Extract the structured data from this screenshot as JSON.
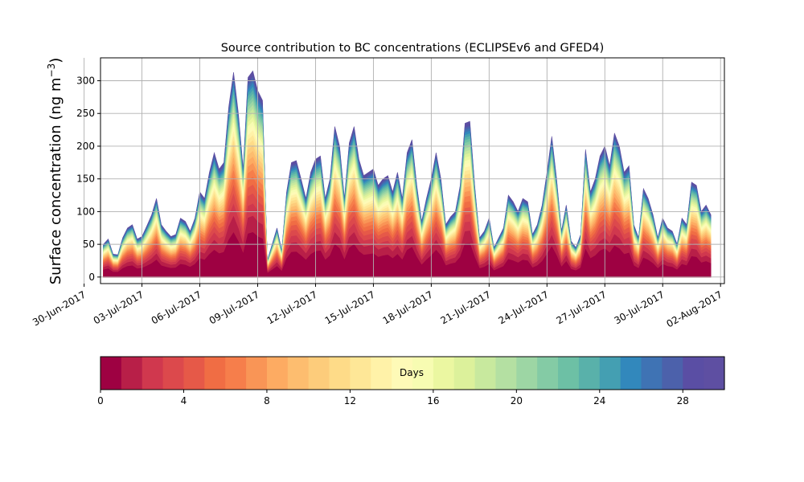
{
  "chart_data": {
    "type": "area",
    "title": "Source contribution to BC concentrations (ECLIPSEv6 and GFED4)",
    "ylabel": "Surface concentration (ng m",
    "ylabel_sup": "−3",
    "ylabel_close": ")",
    "xlabel": "",
    "ylim": [
      -10,
      335
    ],
    "yticks": [
      0,
      50,
      100,
      150,
      200,
      250,
      300
    ],
    "xticks": [
      "30-Jun-2017",
      "03-Jul-2017",
      "06-Jul-2017",
      "09-Jul-2017",
      "12-Jul-2017",
      "15-Jul-2017",
      "18-Jul-2017",
      "21-Jul-2017",
      "24-Jul-2017",
      "27-Jul-2017",
      "30-Jul-2017",
      "02-Aug-2017"
    ],
    "x_start_date": "2017-07-01",
    "x_end_date": "2017-08-02",
    "grid": true,
    "stacked_layers": 30,
    "colorbar": {
      "label": "Days",
      "min": 0,
      "max": 30,
      "ticks": [
        0,
        4,
        8,
        12,
        16,
        20,
        24,
        28
      ],
      "colors": [
        "#9e0142",
        "#b81f48",
        "#d0384e",
        "#dc494c",
        "#e65948",
        "#f06d44",
        "#f67e4b",
        "#f99556",
        "#fdab62",
        "#fdbd6f",
        "#fdcc7b",
        "#fedb88",
        "#fee797",
        "#fff2a8",
        "#fefab7",
        "#f7fcb2",
        "#ebf7a1",
        "#dcf19b",
        "#c8e99e",
        "#b4e0a2",
        "#9dd6a4",
        "#84cba5",
        "#6dc0a5",
        "#59b1aa",
        "#449fb2",
        "#3288bc",
        "#3f73b4",
        "#4c61ab",
        "#5a4ea4",
        "#5e4fa2"
      ]
    },
    "total_series": {
      "x_dates": [
        "2017-07-01T00:00",
        "2017-07-01T06:00",
        "2017-07-01T12:00",
        "2017-07-01T18:00",
        "2017-07-02T00:00",
        "2017-07-02T06:00",
        "2017-07-02T12:00",
        "2017-07-02T18:00",
        "2017-07-03T00:00",
        "2017-07-03T06:00",
        "2017-07-03T12:00",
        "2017-07-03T18:00",
        "2017-07-04T00:00",
        "2017-07-04T06:00",
        "2017-07-04T12:00",
        "2017-07-04T18:00",
        "2017-07-05T00:00",
        "2017-07-05T06:00",
        "2017-07-05T12:00",
        "2017-07-05T18:00",
        "2017-07-06T00:00",
        "2017-07-06T06:00",
        "2017-07-06T12:00",
        "2017-07-06T18:00",
        "2017-07-07T00:00",
        "2017-07-07T06:00",
        "2017-07-07T12:00",
        "2017-07-07T18:00",
        "2017-07-08T00:00",
        "2017-07-08T06:00",
        "2017-07-08T12:00",
        "2017-07-08T18:00",
        "2017-07-09T00:00",
        "2017-07-09T06:00",
        "2017-07-09T12:00",
        "2017-07-09T18:00",
        "2017-07-10T00:00",
        "2017-07-10T06:00",
        "2017-07-10T12:00",
        "2017-07-10T18:00",
        "2017-07-11T00:00",
        "2017-07-11T06:00",
        "2017-07-11T12:00",
        "2017-07-11T18:00",
        "2017-07-12T00:00",
        "2017-07-12T06:00",
        "2017-07-12T12:00",
        "2017-07-12T18:00",
        "2017-07-13T00:00",
        "2017-07-13T06:00",
        "2017-07-13T12:00",
        "2017-07-13T18:00",
        "2017-07-14T00:00",
        "2017-07-14T06:00",
        "2017-07-14T12:00",
        "2017-07-14T18:00",
        "2017-07-15T00:00",
        "2017-07-15T06:00",
        "2017-07-15T12:00",
        "2017-07-15T18:00",
        "2017-07-16T00:00",
        "2017-07-16T06:00",
        "2017-07-16T12:00",
        "2017-07-16T18:00",
        "2017-07-17T00:00",
        "2017-07-17T06:00",
        "2017-07-17T12:00",
        "2017-07-17T18:00",
        "2017-07-18T00:00",
        "2017-07-18T06:00",
        "2017-07-18T12:00",
        "2017-07-18T18:00",
        "2017-07-19T00:00",
        "2017-07-19T06:00",
        "2017-07-19T12:00",
        "2017-07-19T18:00",
        "2017-07-20T00:00",
        "2017-07-20T06:00",
        "2017-07-20T12:00",
        "2017-07-20T18:00",
        "2017-07-21T00:00",
        "2017-07-21T06:00",
        "2017-07-21T12:00",
        "2017-07-21T18:00",
        "2017-07-22T00:00",
        "2017-07-22T06:00",
        "2017-07-22T12:00",
        "2017-07-22T18:00",
        "2017-07-23T00:00",
        "2017-07-23T06:00",
        "2017-07-23T12:00",
        "2017-07-23T18:00",
        "2017-07-24T00:00",
        "2017-07-24T06:00",
        "2017-07-24T12:00",
        "2017-07-24T18:00",
        "2017-07-25T00:00",
        "2017-07-25T06:00",
        "2017-07-25T12:00",
        "2017-07-25T18:00",
        "2017-07-26T00:00",
        "2017-07-26T06:00",
        "2017-07-26T12:00",
        "2017-07-26T18:00",
        "2017-07-27T00:00",
        "2017-07-27T06:00",
        "2017-07-27T12:00",
        "2017-07-27T18:00",
        "2017-07-28T00:00",
        "2017-07-28T06:00",
        "2017-07-28T12:00",
        "2017-07-28T18:00",
        "2017-07-29T00:00",
        "2017-07-29T06:00",
        "2017-07-29T12:00",
        "2017-07-29T18:00",
        "2017-07-30T00:00",
        "2017-07-30T06:00",
        "2017-07-30T12:00",
        "2017-07-30T18:00",
        "2017-07-31T00:00",
        "2017-07-31T06:00",
        "2017-07-31T12:00",
        "2017-07-31T18:00",
        "2017-08-01T00:00",
        "2017-08-01T06:00",
        "2017-08-01T12:00"
      ],
      "y": [
        50,
        58,
        35,
        34,
        60,
        75,
        80,
        58,
        62,
        78,
        95,
        120,
        80,
        70,
        62,
        65,
        90,
        85,
        70,
        90,
        130,
        120,
        160,
        190,
        165,
        175,
        260,
        313,
        250,
        165,
        305,
        315,
        285,
        270,
        25,
        50,
        75,
        40,
        130,
        175,
        178,
        150,
        120,
        160,
        180,
        185,
        120,
        150,
        230,
        200,
        120,
        205,
        230,
        180,
        155,
        160,
        165,
        140,
        150,
        155,
        130,
        160,
        120,
        190,
        210,
        140,
        85,
        120,
        150,
        190,
        150,
        80,
        92,
        100,
        140,
        235,
        238,
        140,
        60,
        70,
        90,
        45,
        60,
        75,
        125,
        115,
        100,
        120,
        115,
        65,
        80,
        110,
        160,
        215,
        150,
        70,
        110,
        55,
        45,
        65,
        195,
        130,
        150,
        185,
        200,
        170,
        220,
        200,
        160,
        170,
        80,
        60,
        135,
        120,
        95,
        60,
        90,
        75,
        70,
        50,
        90,
        80,
        145,
        140,
        100,
        110,
        95
      ]
    }
  }
}
